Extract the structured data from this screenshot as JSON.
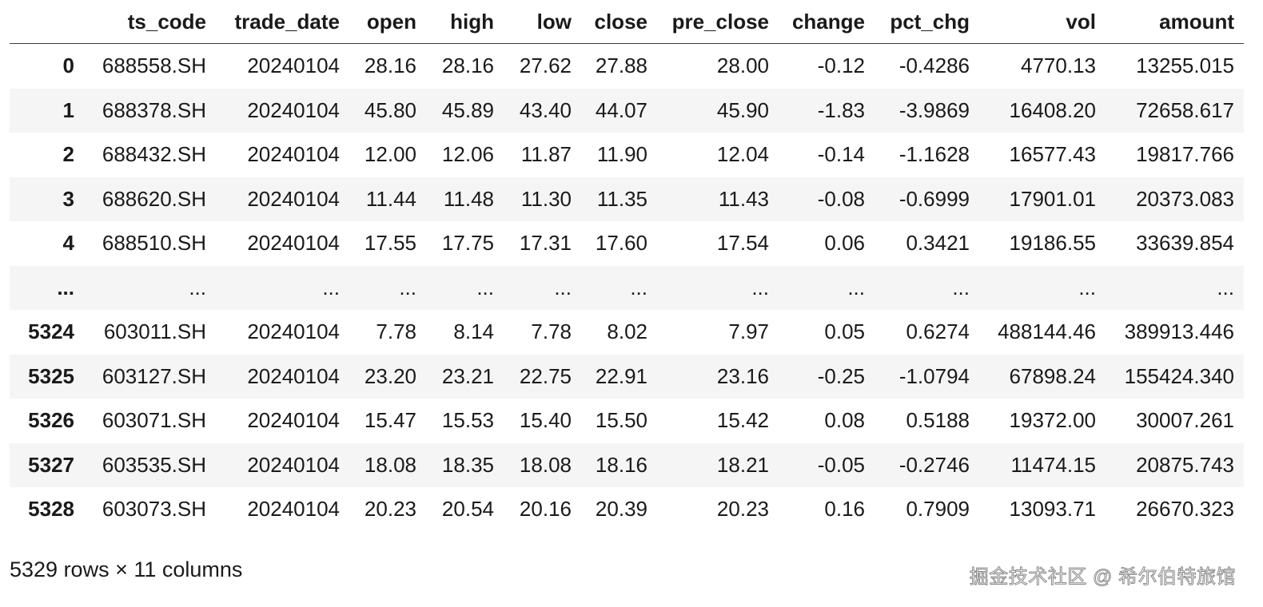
{
  "table": {
    "columns": [
      "",
      "ts_code",
      "trade_date",
      "open",
      "high",
      "low",
      "close",
      "pre_close",
      "change",
      "pct_chg",
      "vol",
      "amount"
    ],
    "rows": [
      {
        "index": "0",
        "cells": [
          "688558.SH",
          "20240104",
          "28.16",
          "28.16",
          "27.62",
          "27.88",
          "28.00",
          "-0.12",
          "-0.4286",
          "4770.13",
          "13255.015"
        ]
      },
      {
        "index": "1",
        "cells": [
          "688378.SH",
          "20240104",
          "45.80",
          "45.89",
          "43.40",
          "44.07",
          "45.90",
          "-1.83",
          "-3.9869",
          "16408.20",
          "72658.617"
        ]
      },
      {
        "index": "2",
        "cells": [
          "688432.SH",
          "20240104",
          "12.00",
          "12.06",
          "11.87",
          "11.90",
          "12.04",
          "-0.14",
          "-1.1628",
          "16577.43",
          "19817.766"
        ]
      },
      {
        "index": "3",
        "cells": [
          "688620.SH",
          "20240104",
          "11.44",
          "11.48",
          "11.30",
          "11.35",
          "11.43",
          "-0.08",
          "-0.6999",
          "17901.01",
          "20373.083"
        ]
      },
      {
        "index": "4",
        "cells": [
          "688510.SH",
          "20240104",
          "17.55",
          "17.75",
          "17.31",
          "17.60",
          "17.54",
          "0.06",
          "0.3421",
          "19186.55",
          "33639.854"
        ]
      },
      {
        "index": "...",
        "cells": [
          "...",
          "...",
          "...",
          "...",
          "...",
          "...",
          "...",
          "...",
          "...",
          "...",
          "..."
        ]
      },
      {
        "index": "5324",
        "cells": [
          "603011.SH",
          "20240104",
          "7.78",
          "8.14",
          "7.78",
          "8.02",
          "7.97",
          "0.05",
          "0.6274",
          "488144.46",
          "389913.446"
        ]
      },
      {
        "index": "5325",
        "cells": [
          "603127.SH",
          "20240104",
          "23.20",
          "23.21",
          "22.75",
          "22.91",
          "23.16",
          "-0.25",
          "-1.0794",
          "67898.24",
          "155424.340"
        ]
      },
      {
        "index": "5326",
        "cells": [
          "603071.SH",
          "20240104",
          "15.47",
          "15.53",
          "15.40",
          "15.50",
          "15.42",
          "0.08",
          "0.5188",
          "19372.00",
          "30007.261"
        ]
      },
      {
        "index": "5327",
        "cells": [
          "603535.SH",
          "20240104",
          "18.08",
          "18.35",
          "18.08",
          "18.16",
          "18.21",
          "-0.05",
          "-0.2746",
          "11474.15",
          "20875.743"
        ]
      },
      {
        "index": "5328",
        "cells": [
          "603073.SH",
          "20240104",
          "20.23",
          "20.54",
          "20.16",
          "20.39",
          "20.23",
          "0.16",
          "0.7909",
          "13093.71",
          "26670.323"
        ]
      }
    ]
  },
  "shape_note": "5329 rows × 11 columns",
  "watermark": "掘金技术社区 @ 希尔伯特旅馆",
  "colors": {
    "row_stripe": "#f5f5f5",
    "header_rule": "#3a3a3a",
    "text": "#1a1a1a"
  }
}
